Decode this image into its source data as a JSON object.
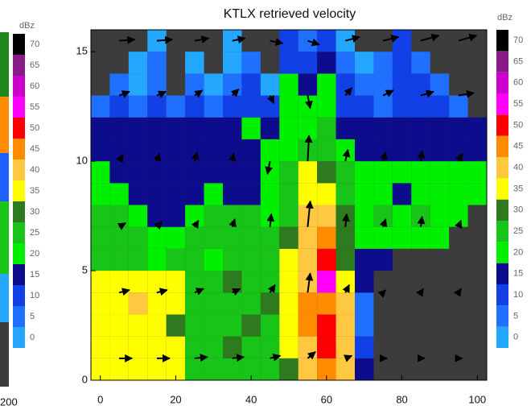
{
  "chart_data": {
    "type": "heatmap",
    "title": "KTLX retrieved velocity",
    "x": [
      0,
      5,
      10,
      15,
      20,
      25,
      30,
      35,
      40,
      45,
      50,
      55,
      60,
      65,
      70,
      75,
      80,
      85,
      90,
      95,
      100
    ],
    "y": [
      0.5,
      1.5,
      2.5,
      3.5,
      4.5,
      5.5,
      6.5,
      7.5,
      8.5,
      9.5,
      10.5,
      11.5,
      12.5,
      13.5,
      14.5,
      15.5
    ],
    "values": [
      [
        35,
        35,
        35,
        35,
        35,
        25,
        25,
        25,
        25,
        25,
        30,
        40,
        45,
        40,
        15,
        null,
        null,
        null,
        null,
        null,
        null
      ],
      [
        35,
        35,
        35,
        35,
        35,
        25,
        25,
        30,
        25,
        25,
        35,
        40,
        50,
        40,
        10,
        null,
        null,
        null,
        null,
        null,
        null
      ],
      [
        35,
        35,
        35,
        35,
        30,
        25,
        25,
        25,
        30,
        25,
        35,
        45,
        50,
        40,
        5,
        null,
        null,
        null,
        null,
        null,
        null
      ],
      [
        35,
        35,
        40,
        35,
        35,
        25,
        25,
        25,
        25,
        30,
        35,
        45,
        45,
        40,
        5,
        null,
        null,
        null,
        null,
        null,
        null
      ],
      [
        35,
        35,
        35,
        35,
        35,
        25,
        25,
        30,
        25,
        25,
        35,
        40,
        55,
        35,
        15,
        null,
        null,
        null,
        null,
        null,
        null
      ],
      [
        25,
        25,
        25,
        20,
        25,
        25,
        20,
        25,
        25,
        25,
        35,
        40,
        50,
        30,
        15,
        15,
        null,
        null,
        null,
        null,
        null
      ],
      [
        25,
        25,
        25,
        20,
        20,
        25,
        25,
        25,
        25,
        25,
        30,
        40,
        45,
        30,
        20,
        20,
        20,
        20,
        20,
        null,
        null
      ],
      [
        25,
        25,
        20,
        15,
        15,
        20,
        25,
        25,
        25,
        20,
        25,
        40,
        40,
        30,
        20,
        25,
        20,
        25,
        20,
        20,
        null
      ],
      [
        20,
        20,
        15,
        15,
        15,
        15,
        20,
        15,
        15,
        20,
        25,
        35,
        35,
        25,
        20,
        20,
        15,
        20,
        20,
        20,
        20
      ],
      [
        20,
        15,
        15,
        15,
        15,
        15,
        15,
        15,
        15,
        20,
        25,
        35,
        30,
        25,
        20,
        20,
        20,
        20,
        20,
        20,
        20
      ],
      [
        15,
        15,
        15,
        15,
        15,
        15,
        15,
        15,
        15,
        20,
        20,
        25,
        25,
        20,
        15,
        15,
        15,
        15,
        15,
        15,
        15
      ],
      [
        15,
        15,
        15,
        15,
        15,
        15,
        15,
        15,
        20,
        15,
        20,
        20,
        25,
        15,
        15,
        15,
        15,
        15,
        15,
        15,
        15
      ],
      [
        5,
        10,
        5,
        10,
        5,
        10,
        5,
        10,
        10,
        10,
        20,
        20,
        20,
        10,
        10,
        5,
        10,
        10,
        10,
        5,
        null
      ],
      [
        null,
        5,
        0,
        5,
        null,
        5,
        0,
        5,
        10,
        0,
        20,
        15,
        20,
        10,
        5,
        5,
        10,
        10,
        5,
        null,
        null
      ],
      [
        null,
        null,
        0,
        5,
        null,
        0,
        null,
        0,
        5,
        null,
        10,
        10,
        15,
        5,
        0,
        5,
        10,
        5,
        null,
        null,
        null
      ],
      [
        null,
        null,
        null,
        0,
        null,
        null,
        null,
        0,
        null,
        null,
        10,
        5,
        10,
        0,
        null,
        null,
        10,
        null,
        null,
        null,
        null
      ]
    ],
    "vectors": [
      {
        "x": 5,
        "y": 1,
        "u": 10,
        "w": 0
      },
      {
        "x": 15,
        "y": 1,
        "u": 10,
        "w": 0
      },
      {
        "x": 25,
        "y": 1,
        "u": 10,
        "w": 1
      },
      {
        "x": 35,
        "y": 1,
        "u": 9,
        "w": 1
      },
      {
        "x": 45,
        "y": 1,
        "u": 8,
        "w": 2
      },
      {
        "x": 55,
        "y": 1,
        "u": 6,
        "w": 5
      },
      {
        "x": 65,
        "y": 1,
        "u": 5,
        "w": 2
      },
      {
        "x": 75,
        "y": 1,
        "u": 3,
        "w": 0
      },
      {
        "x": 85,
        "y": 1,
        "u": 3,
        "w": 0
      },
      {
        "x": 95,
        "y": 1,
        "u": 3,
        "w": 0
      },
      {
        "x": 5,
        "y": 4,
        "u": 8,
        "w": 2
      },
      {
        "x": 15,
        "y": 4,
        "u": 8,
        "w": 2
      },
      {
        "x": 25,
        "y": 4,
        "u": 7,
        "w": 3
      },
      {
        "x": 35,
        "y": 4,
        "u": 6,
        "w": 3
      },
      {
        "x": 45,
        "y": 4,
        "u": 4,
        "w": 6
      },
      {
        "x": 55,
        "y": 4,
        "u": 2,
        "w": 15
      },
      {
        "x": 65,
        "y": 4,
        "u": 3,
        "w": 6
      },
      {
        "x": 75,
        "y": 4,
        "u": 2,
        "w": 2
      },
      {
        "x": 85,
        "y": 4,
        "u": 2,
        "w": 3
      },
      {
        "x": 95,
        "y": 4,
        "u": 2,
        "w": 3
      },
      {
        "x": 5,
        "y": 7,
        "u": 5,
        "w": 3
      },
      {
        "x": 15,
        "y": 7,
        "u": 4,
        "w": 4
      },
      {
        "x": 25,
        "y": 7,
        "u": 3,
        "w": 5
      },
      {
        "x": 35,
        "y": 7,
        "u": 2,
        "w": 6
      },
      {
        "x": 45,
        "y": 7,
        "u": 1,
        "w": 10
      },
      {
        "x": 55,
        "y": 7,
        "u": 2,
        "w": 20
      },
      {
        "x": 65,
        "y": 7,
        "u": 1,
        "w": 10
      },
      {
        "x": 75,
        "y": 7,
        "u": 2,
        "w": 6
      },
      {
        "x": 85,
        "y": 7,
        "u": 1,
        "w": 8
      },
      {
        "x": 95,
        "y": 7,
        "u": 2,
        "w": 5
      },
      {
        "x": 5,
        "y": 10,
        "u": 3,
        "w": 5
      },
      {
        "x": 15,
        "y": 10,
        "u": 2,
        "w": 6
      },
      {
        "x": 25,
        "y": 10,
        "u": 2,
        "w": 7
      },
      {
        "x": 35,
        "y": 10,
        "u": 1,
        "w": 6
      },
      {
        "x": 45,
        "y": 10,
        "u": -2,
        "w": -10
      },
      {
        "x": 55,
        "y": 10,
        "u": 1,
        "w": 20
      },
      {
        "x": 65,
        "y": 10,
        "u": 2,
        "w": 9
      },
      {
        "x": 75,
        "y": 10,
        "u": 2,
        "w": 7
      },
      {
        "x": 85,
        "y": 10,
        "u": 1,
        "w": 8
      },
      {
        "x": 95,
        "y": 10,
        "u": 3,
        "w": 6
      },
      {
        "x": 5,
        "y": 13,
        "u": 8,
        "w": 3
      },
      {
        "x": 15,
        "y": 13,
        "u": 7,
        "w": 3
      },
      {
        "x": 25,
        "y": 13,
        "u": 6,
        "w": 4
      },
      {
        "x": 35,
        "y": 13,
        "u": 5,
        "w": 5
      },
      {
        "x": 45,
        "y": 13,
        "u": 3,
        "w": -6
      },
      {
        "x": 55,
        "y": 13,
        "u": 2,
        "w": -10
      },
      {
        "x": 65,
        "y": 13,
        "u": 5,
        "w": 6
      },
      {
        "x": 75,
        "y": 13,
        "u": 8,
        "w": 4
      },
      {
        "x": 85,
        "y": 13,
        "u": 10,
        "w": 3
      },
      {
        "x": 95,
        "y": 13,
        "u": 12,
        "w": 2
      },
      {
        "x": 5,
        "y": 15.5,
        "u": 12,
        "w": 1
      },
      {
        "x": 15,
        "y": 15.5,
        "u": 12,
        "w": 1
      },
      {
        "x": 25,
        "y": 15.5,
        "u": 11,
        "w": 2
      },
      {
        "x": 35,
        "y": 15.5,
        "u": 10,
        "w": 2
      },
      {
        "x": 45,
        "y": 15.5,
        "u": 10,
        "w": -2
      },
      {
        "x": 55,
        "y": 15.5,
        "u": 9,
        "w": -3
      },
      {
        "x": 65,
        "y": 15.5,
        "u": 11,
        "w": 3
      },
      {
        "x": 75,
        "y": 15.5,
        "u": 12,
        "w": 3
      },
      {
        "x": 85,
        "y": 15.5,
        "u": 14,
        "w": 4
      },
      {
        "x": 95,
        "y": 15.5,
        "u": 14,
        "w": 4
      }
    ],
    "xlim": [
      -2.5,
      102.5
    ],
    "ylim": [
      0,
      16
    ],
    "xticks": [
      0,
      20,
      40,
      60,
      80,
      100
    ],
    "yticks": [
      0,
      5,
      10,
      15
    ],
    "missing_color": "#3c3c3c",
    "vector_color": "#000000",
    "colorbar": {
      "label": "dBz",
      "levels": [
        0,
        5,
        10,
        15,
        20,
        25,
        30,
        35,
        40,
        45,
        50,
        55,
        60,
        65,
        70
      ],
      "colors": [
        "#24a8ff",
        "#2070ff",
        "#1040e6",
        "#0c0c8c",
        "#00f000",
        "#18c418",
        "#2e7a1e",
        "#ffff00",
        "#ffc840",
        "#ff8c00",
        "#ff0000",
        "#ff00ff",
        "#cc00cc",
        "#8a1a8a",
        "#000000"
      ]
    },
    "left_panel": {
      "colorbar_label": "dBz",
      "colorbar_levels": [
        0,
        5,
        10,
        15,
        20,
        25,
        30,
        35,
        40,
        45,
        50,
        55,
        60,
        65,
        70
      ],
      "x_tick_label": "200"
    }
  }
}
